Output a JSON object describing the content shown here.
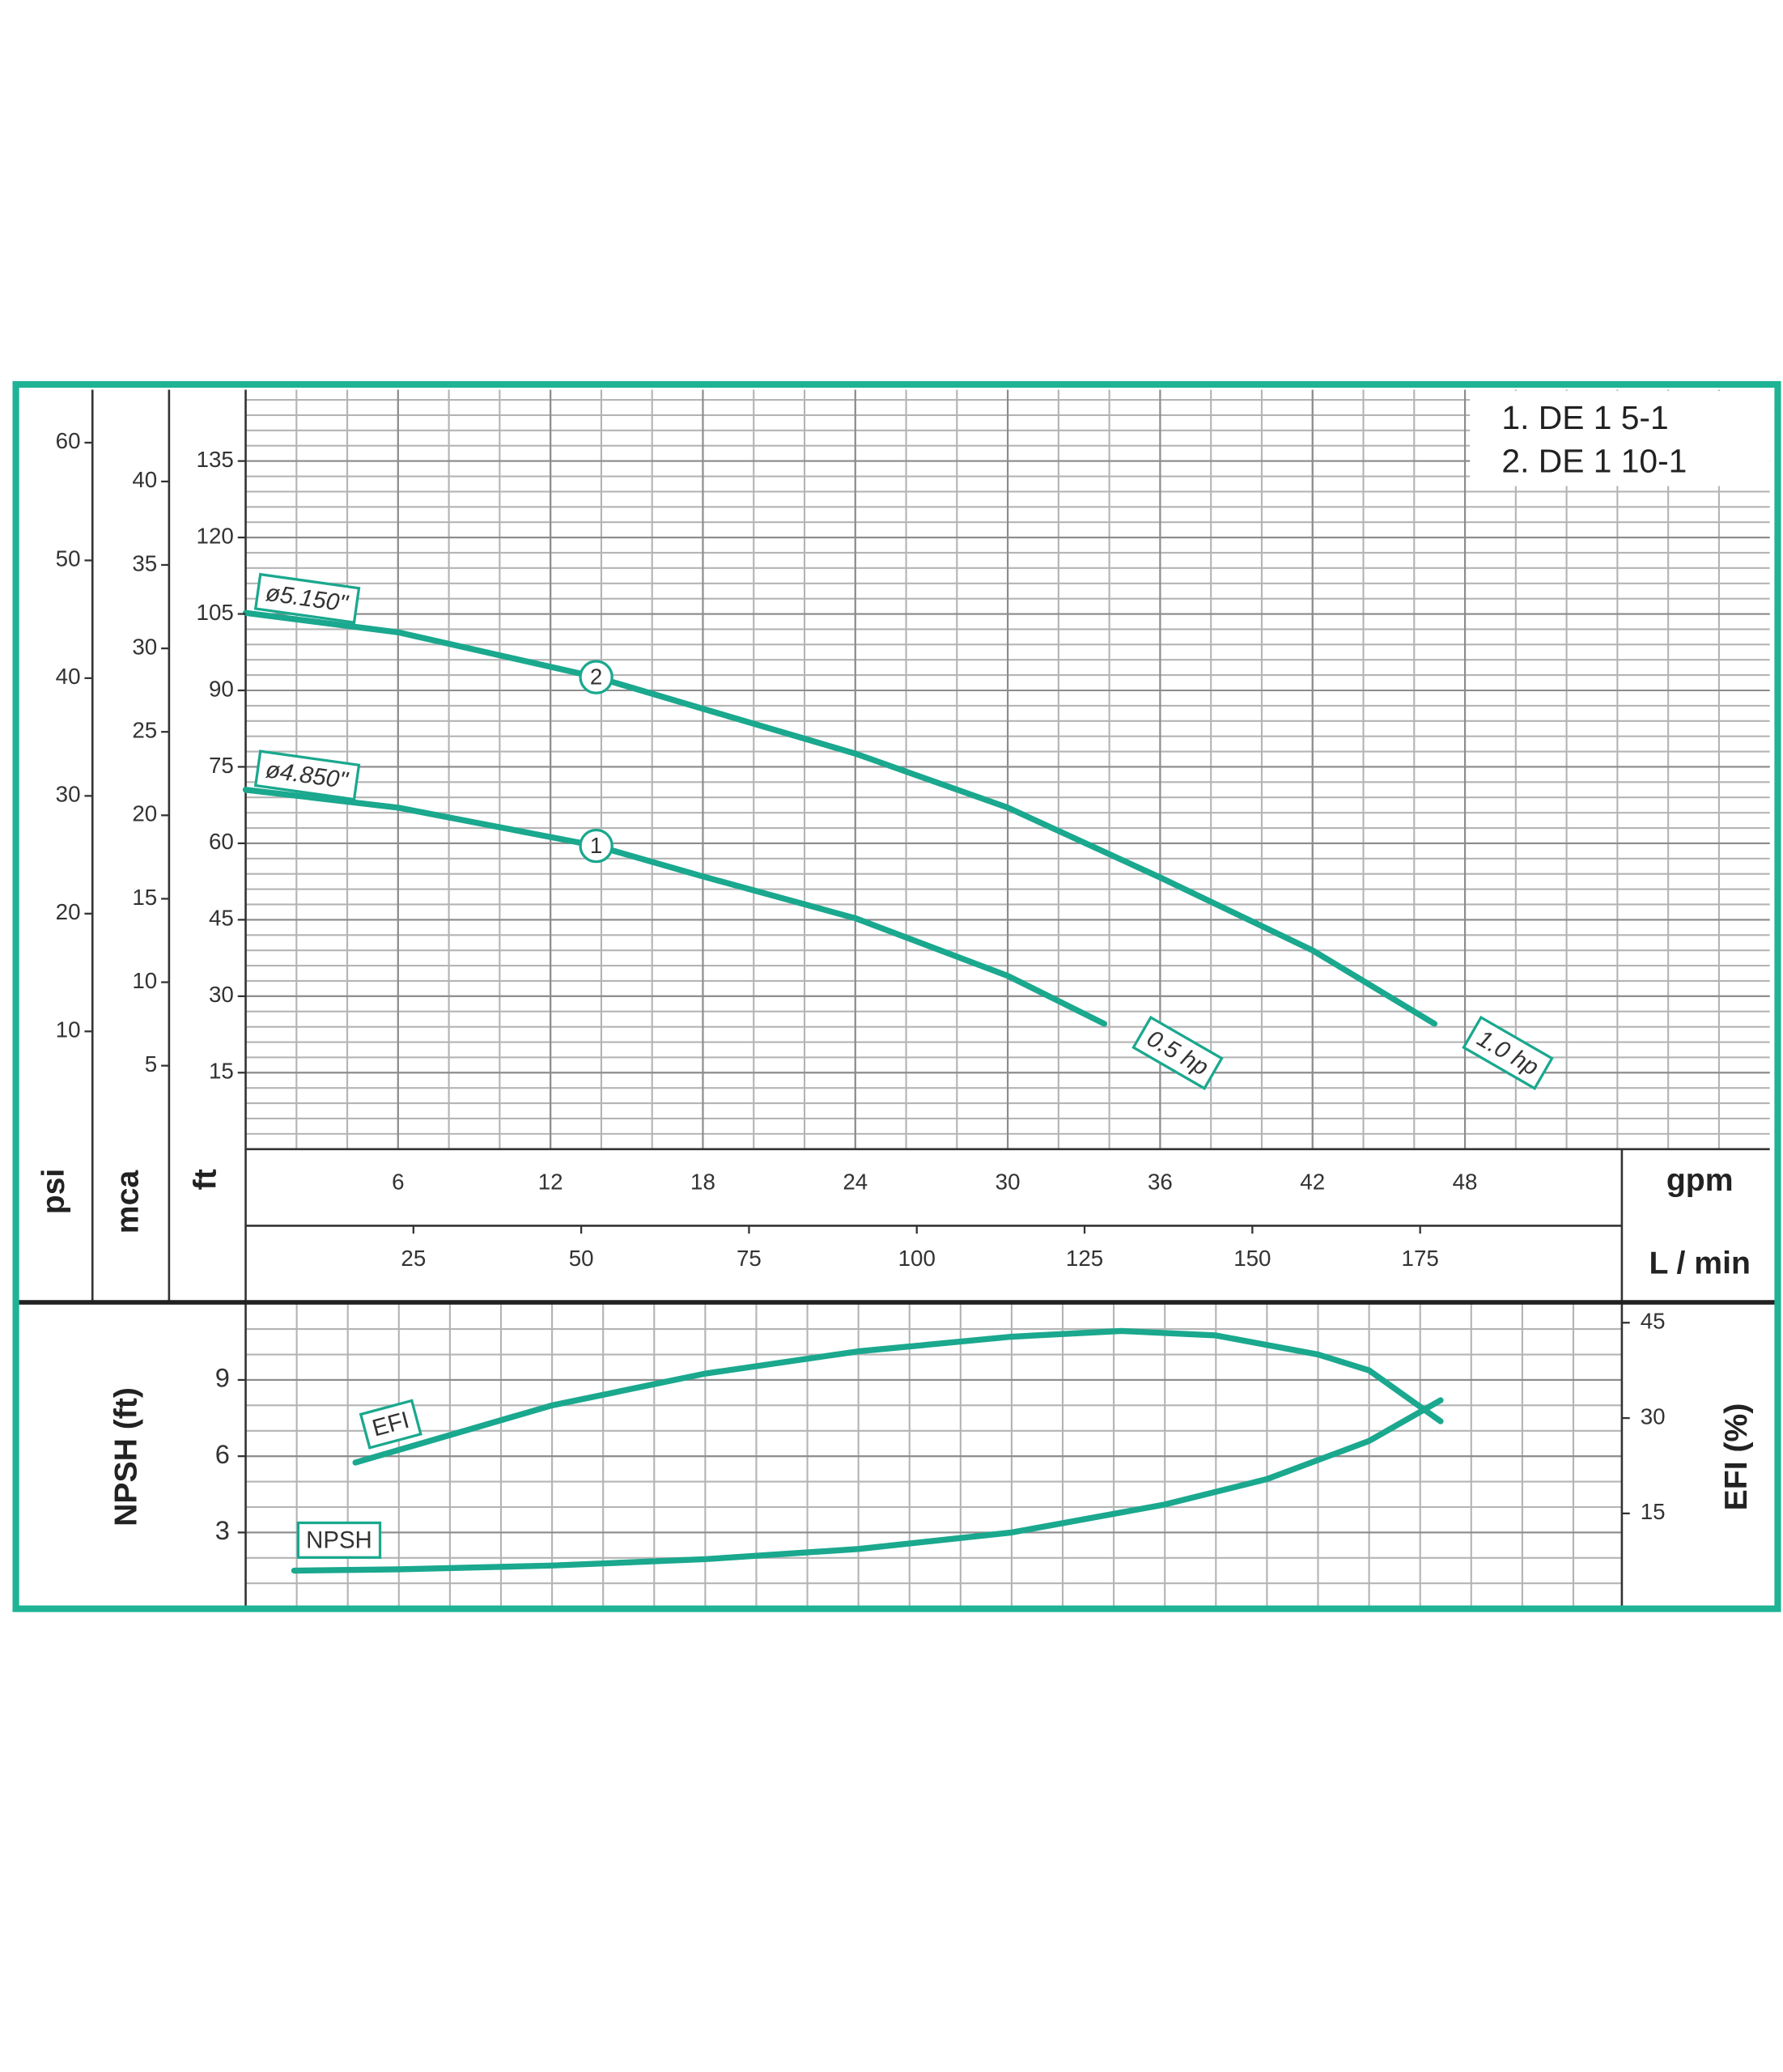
{
  "chart_data": [
    {
      "type": "line",
      "legend": [
        "1. DE 1  5-1",
        "2. DE 1 10-1"
      ],
      "x_label": "gpm",
      "x2_label": "L / min",
      "y_label": "ft",
      "psi_label": "psi",
      "mca_label": "mca",
      "xlim": [
        0,
        60
      ],
      "xticks": [
        6,
        12,
        18,
        24,
        30,
        36,
        42,
        48
      ],
      "x2lim": [
        0,
        227.1
      ],
      "x2ticks": [
        25,
        50,
        75,
        100,
        125,
        150,
        175
      ],
      "ylim": [
        0,
        149
      ],
      "yticks": [
        15,
        30,
        45,
        60,
        75,
        90,
        105,
        120,
        135
      ],
      "psi_lim": [
        0,
        64.5
      ],
      "psi_ticks": [
        10,
        20,
        30,
        40,
        50,
        60
      ],
      "mca_lim": [
        0,
        45.5
      ],
      "mca_ticks": [
        5,
        10,
        15,
        20,
        25,
        30,
        35,
        40
      ],
      "grid": {
        "x_step": 2,
        "y_step": 3
      },
      "series": [
        {
          "name": "1",
          "color": "#1aa88e",
          "diameter": "ø4.850\"",
          "power": "0.5 hp",
          "x": [
            0,
            6,
            13.8,
            18,
            24,
            30,
            33.8
          ],
          "values": [
            70.5,
            67,
            59.5,
            53.5,
            45.3,
            34,
            24.6
          ]
        },
        {
          "name": "2",
          "color": "#1aa88e",
          "diameter": "ø5.150\"",
          "power": "1.0 hp",
          "x": [
            0,
            6,
            13.8,
            18,
            24,
            30,
            36,
            42,
            46.8
          ],
          "values": [
            105.2,
            101.4,
            92.6,
            86.4,
            77.6,
            67,
            53.3,
            39,
            24.6
          ]
        }
      ]
    },
    {
      "type": "line",
      "y_label": "NPSH (ft)",
      "y2_label": "EFI (%)",
      "xlim": [
        0,
        53.9
      ],
      "ylim": [
        0,
        12
      ],
      "yticks": [
        3,
        6,
        9
      ],
      "y2lim": [
        0,
        48
      ],
      "y2ticks": [
        15,
        30,
        45
      ],
      "grid": {
        "x_step": 2,
        "y_step": 1
      },
      "series": [
        {
          "name": "NPSH",
          "color": "#1aa88e",
          "axis": "y",
          "x": [
            1.9,
            6,
            12,
            18,
            24,
            30,
            36,
            40,
            44,
            46.8
          ],
          "values": [
            1.5,
            1.55,
            1.7,
            1.95,
            2.35,
            3.0,
            4.1,
            5.1,
            6.6,
            8.2
          ]
        },
        {
          "name": "EFI",
          "color": "#1aa88e",
          "axis": "y2",
          "x": [
            4.3,
            12,
            18,
            24,
            30,
            34.3,
            38,
            42,
            44,
            46.8
          ],
          "values": [
            23,
            32,
            37,
            40.5,
            42.8,
            43.7,
            43,
            40,
            37.5,
            29.5
          ]
        }
      ]
    }
  ]
}
